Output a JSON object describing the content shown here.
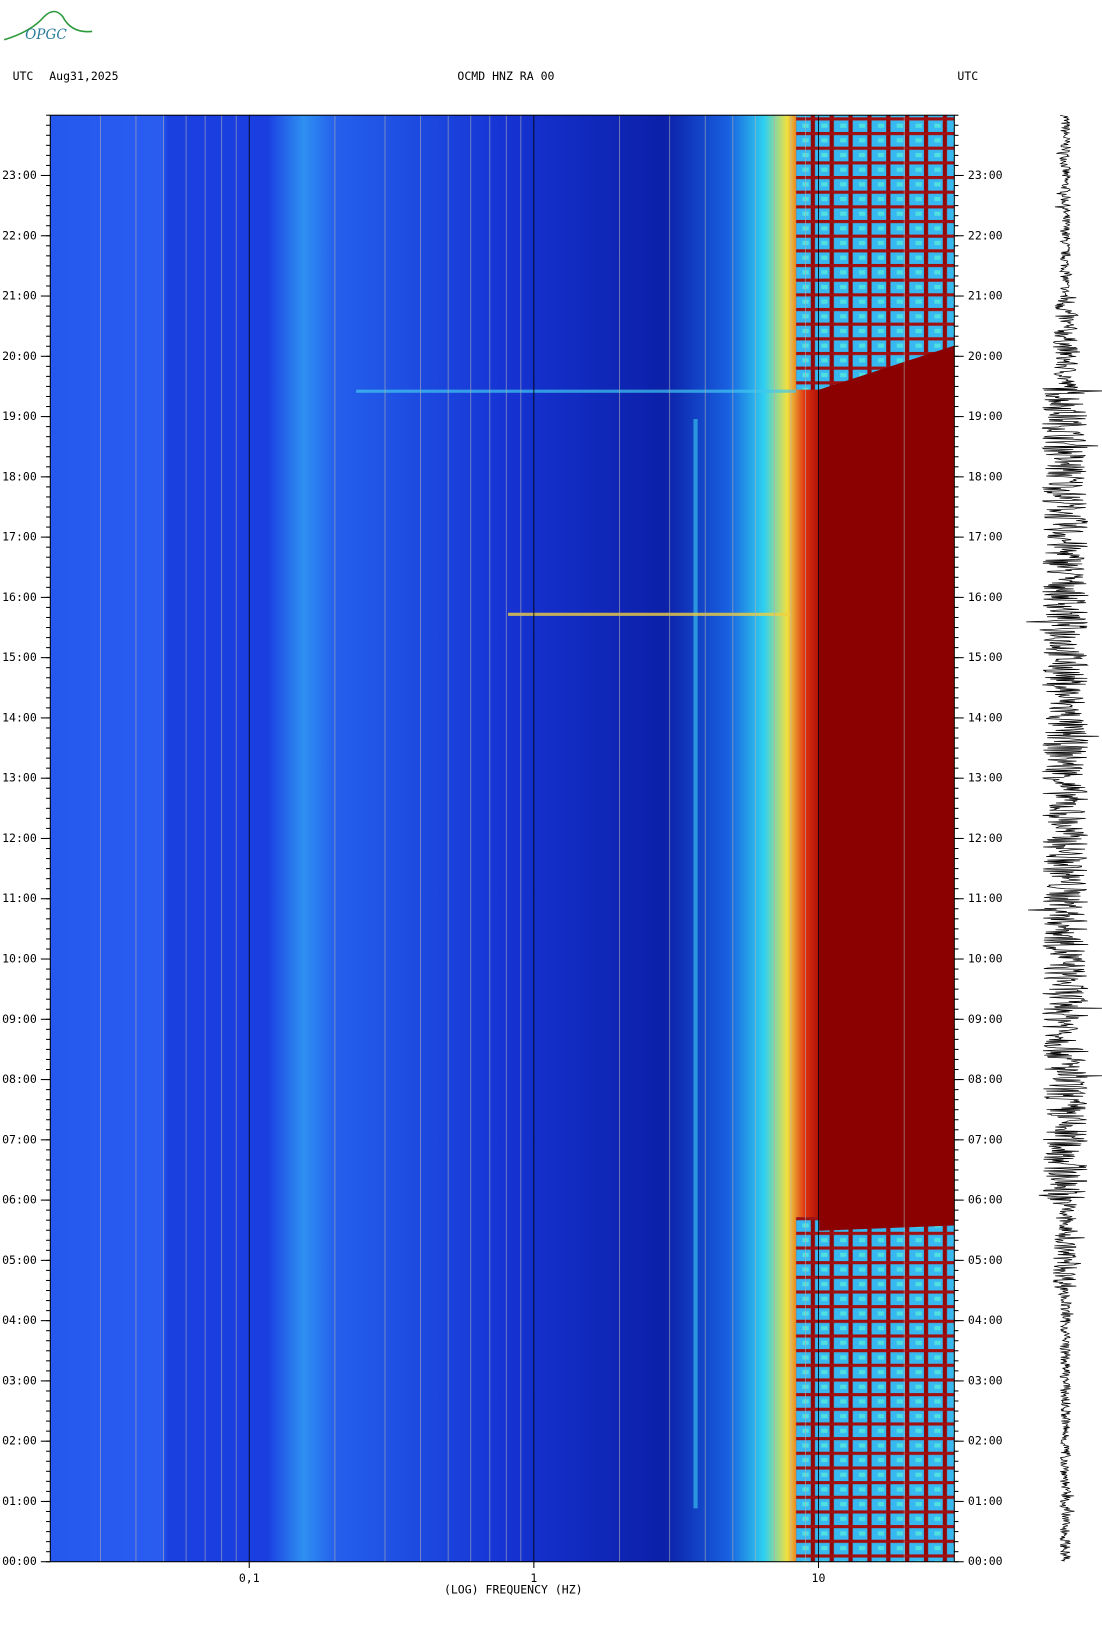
{
  "logo": "OPGC",
  "chart_data": {
    "type": "spectrogram",
    "title": "OCMD HNZ RA 00",
    "date": "Aug31,2025",
    "left_label": "UTC",
    "right_label": "UTC",
    "xlabel": "(LOG) FREQUENCY (HZ)",
    "xscale": "log",
    "xlim": [
      0.02,
      30
    ],
    "xticks": [
      {
        "value": 0.1,
        "label": "0,1"
      },
      1,
      10
    ],
    "ylim": [
      0,
      24
    ],
    "yticks": [
      {
        "value": 0,
        "label": "00:00"
      },
      {
        "value": 1,
        "label": "01:00"
      },
      {
        "value": 2,
        "label": "02:00"
      },
      {
        "value": 3,
        "label": "03:00"
      },
      {
        "value": 4,
        "label": "04:00"
      },
      {
        "value": 5,
        "label": "05:00"
      },
      {
        "value": 6,
        "label": "06:00"
      },
      {
        "value": 7,
        "label": "07:00"
      },
      {
        "value": 8,
        "label": "08:00"
      },
      {
        "value": 9,
        "label": "09:00"
      },
      {
        "value": 10,
        "label": "10:00"
      },
      {
        "value": 11,
        "label": "11:00"
      },
      {
        "value": 12,
        "label": "12:00"
      },
      {
        "value": 13,
        "label": "13:00"
      },
      {
        "value": 14,
        "label": "14:00"
      },
      {
        "value": 15,
        "label": "15:00"
      },
      {
        "value": 16,
        "label": "16:00"
      },
      {
        "value": 17,
        "label": "17:00"
      },
      {
        "value": 18,
        "label": "18:00"
      },
      {
        "value": 19,
        "label": "19:00"
      },
      {
        "value": 20,
        "label": "20:00"
      },
      {
        "value": 21,
        "label": "21:00"
      },
      {
        "value": 22,
        "label": "22:00"
      },
      {
        "value": 23,
        "label": "23:00"
      }
    ]
  }
}
